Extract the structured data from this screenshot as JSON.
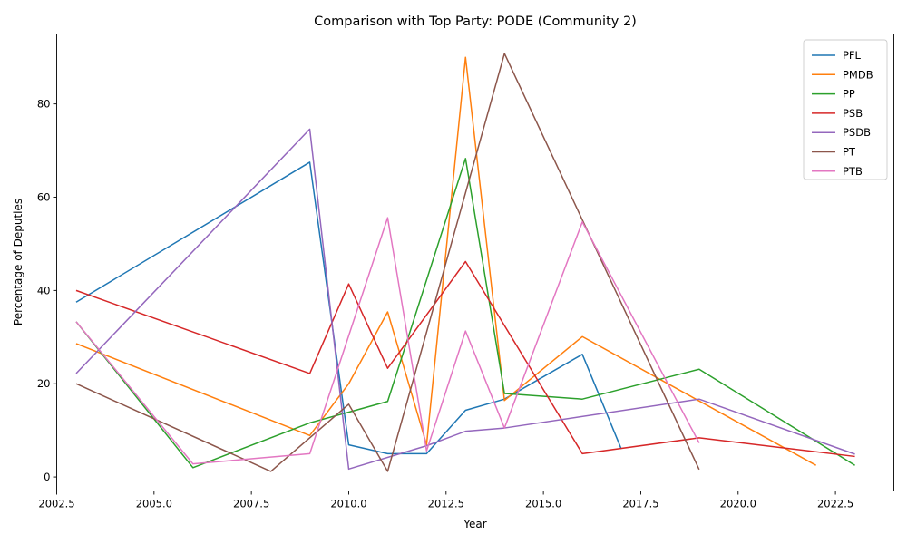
{
  "chart_data": {
    "type": "line",
    "title": "Comparison with Top Party: PODE (Community 2)",
    "xlabel": "Year",
    "ylabel": "Percentage of Deputies",
    "xlim": [
      2002.5,
      2024
    ],
    "ylim": [
      -3,
      95
    ],
    "xticks": [
      2002.5,
      2005.0,
      2007.5,
      2010.0,
      2012.5,
      2015.0,
      2017.5,
      2020.0,
      2022.5
    ],
    "xtick_labels": [
      "2002.5",
      "2005.0",
      "2007.5",
      "2010.0",
      "2012.5",
      "2015.0",
      "2017.5",
      "2020.0",
      "2022.5"
    ],
    "yticks": [
      0,
      20,
      40,
      60,
      80
    ],
    "ytick_labels": [
      "0",
      "20",
      "40",
      "60",
      "80"
    ],
    "grid": false,
    "legend_position": "top-right",
    "series": [
      {
        "name": "PFL",
        "color": "#1f77b4",
        "points": [
          [
            2003,
            37.5
          ],
          [
            2009,
            67.5
          ],
          [
            2010,
            6.9
          ],
          [
            2011,
            5.0
          ],
          [
            2012,
            5.0
          ],
          [
            2013,
            14.3
          ],
          [
            2014,
            16.7
          ],
          [
            2016,
            26.3
          ],
          [
            2017,
            6.0
          ]
        ]
      },
      {
        "name": "PMDB",
        "color": "#ff7f0e",
        "points": [
          [
            2003,
            28.6
          ],
          [
            2009,
            8.9
          ],
          [
            2010,
            20.0
          ],
          [
            2011,
            35.4
          ],
          [
            2012,
            6.9
          ],
          [
            2013,
            90.0
          ],
          [
            2014,
            16.4
          ],
          [
            2016,
            30.1
          ],
          [
            2022,
            2.5
          ]
        ]
      },
      {
        "name": "PP",
        "color": "#2ca02c",
        "points": [
          [
            2003,
            33.3
          ],
          [
            2006,
            2.0
          ],
          [
            2009,
            11.6
          ],
          [
            2011,
            16.2
          ],
          [
            2013,
            68.3
          ],
          [
            2014,
            17.9
          ],
          [
            2016,
            16.7
          ],
          [
            2019,
            23.1
          ],
          [
            2023,
            2.5
          ]
        ]
      },
      {
        "name": "PSB",
        "color": "#d62728",
        "points": [
          [
            2003,
            40.0
          ],
          [
            2009,
            22.2
          ],
          [
            2010,
            41.4
          ],
          [
            2011,
            23.3
          ],
          [
            2013,
            46.2
          ],
          [
            2016,
            5.0
          ],
          [
            2019,
            8.4
          ],
          [
            2023,
            4.4
          ]
        ]
      },
      {
        "name": "PSDB",
        "color": "#9467bd",
        "points": [
          [
            2003,
            22.2
          ],
          [
            2009,
            74.6
          ],
          [
            2010,
            1.7
          ],
          [
            2012,
            6.7
          ],
          [
            2013,
            9.8
          ],
          [
            2014,
            10.5
          ],
          [
            2019,
            16.7
          ],
          [
            2023,
            4.9
          ]
        ]
      },
      {
        "name": "PT",
        "color": "#8c564b",
        "points": [
          [
            2003,
            20.0
          ],
          [
            2008,
            1.2
          ],
          [
            2010,
            15.6
          ],
          [
            2011,
            1.2
          ],
          [
            2014,
            90.8
          ],
          [
            2019,
            1.6
          ]
        ]
      },
      {
        "name": "PTB",
        "color": "#e377c2",
        "points": [
          [
            2003,
            33.3
          ],
          [
            2006,
            2.8
          ],
          [
            2009,
            5.0
          ],
          [
            2011,
            55.6
          ],
          [
            2012,
            5.6
          ],
          [
            2013,
            31.3
          ],
          [
            2014,
            10.5
          ],
          [
            2016,
            54.7
          ],
          [
            2019,
            7.3
          ]
        ]
      }
    ]
  }
}
